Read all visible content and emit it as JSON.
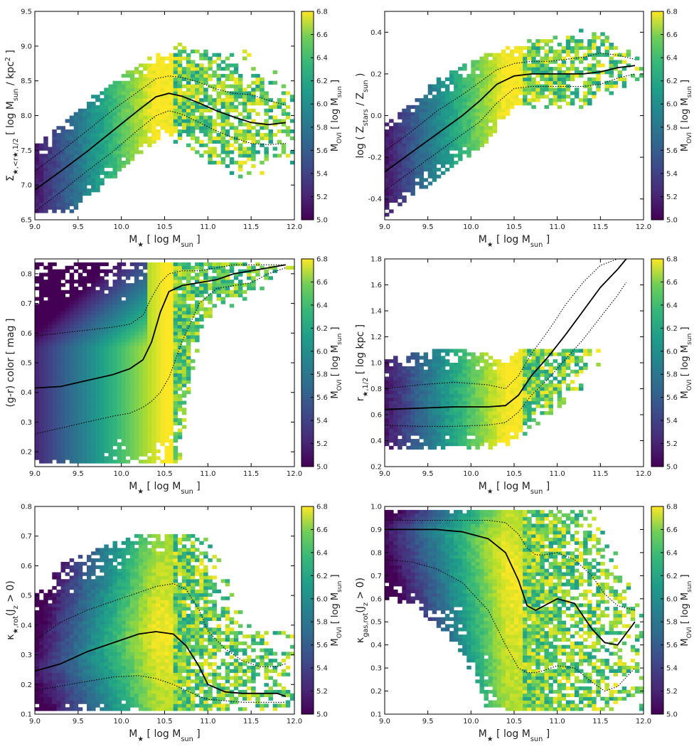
{
  "chart_data": [
    {
      "type": "heatmap",
      "xlabel": "M_★ [ log M_sun ]",
      "ylabel": "Σ_★,<r★,1/2 [ log M_sun / kpc² ]",
      "xlim": [
        9.0,
        12.0
      ],
      "ylim": [
        6.5,
        9.5
      ],
      "xticks": [
        "9.0",
        "9.5",
        "10.0",
        "10.5",
        "11.0",
        "11.5",
        "12.0"
      ],
      "yticks": [
        "6.5",
        "7.0",
        "7.5",
        "8.0",
        "8.5",
        "9.0",
        "9.5"
      ],
      "colorbar": {
        "label": "M_OVI [ log M_sun ]",
        "range": [
          5.0,
          6.8
        ],
        "ticks": [
          "5.0",
          "5.2",
          "5.4",
          "5.6",
          "5.8",
          "6.0",
          "6.2",
          "6.4",
          "6.6",
          "6.8"
        ]
      },
      "median": {
        "x": [
          9.0,
          9.3,
          9.6,
          9.9,
          10.2,
          10.4,
          10.55,
          10.7,
          10.9,
          11.1,
          11.3,
          11.5,
          11.7,
          11.9
        ],
        "y": [
          6.93,
          7.2,
          7.48,
          7.78,
          8.08,
          8.27,
          8.32,
          8.28,
          8.18,
          8.07,
          7.98,
          7.9,
          7.87,
          7.9
        ]
      },
      "upper": {
        "x": [
          9.0,
          9.3,
          9.6,
          9.9,
          10.2,
          10.4,
          10.55,
          10.7,
          10.9,
          11.1,
          11.3,
          11.5,
          11.7,
          11.9
        ],
        "y": [
          7.2,
          7.48,
          7.78,
          8.08,
          8.35,
          8.53,
          8.57,
          8.55,
          8.48,
          8.38,
          8.32,
          8.3,
          8.22,
          8.15
        ]
      },
      "lower": {
        "x": [
          9.0,
          9.3,
          9.6,
          9.9,
          10.2,
          10.4,
          10.55,
          10.7,
          10.9,
          11.1,
          11.3,
          11.5,
          11.7,
          11.9
        ],
        "y": [
          6.62,
          6.9,
          7.2,
          7.48,
          7.8,
          8.0,
          8.07,
          8.02,
          7.9,
          7.78,
          7.68,
          7.6,
          7.58,
          7.6
        ]
      },
      "band_width": 0.75,
      "fill_top": 9.45,
      "fill_bottom": 6.6
    },
    {
      "type": "heatmap",
      "xlabel": "M_★ [ log M_sun ]",
      "ylabel": "log ( Z_stars / Z_sun )",
      "xlim": [
        9.0,
        12.0
      ],
      "ylim": [
        -0.5,
        0.5
      ],
      "xticks": [
        "9.0",
        "9.5",
        "10.0",
        "10.5",
        "11.0",
        "11.5",
        "12.0"
      ],
      "yticks": [
        "-0.4",
        "-0.2",
        "0.0",
        "0.2",
        "0.4"
      ],
      "yticks_values": [
        -0.4,
        -0.2,
        0.0,
        0.2,
        0.4
      ],
      "colorbar": {
        "label": "M_OVI [ log M_sun ]",
        "range": [
          5.0,
          6.8
        ],
        "ticks": [
          "5.0",
          "5.2",
          "5.4",
          "5.6",
          "5.8",
          "6.0",
          "6.2",
          "6.4",
          "6.6",
          "6.8"
        ]
      },
      "median": {
        "x": [
          9.0,
          9.3,
          9.6,
          9.9,
          10.1,
          10.3,
          10.5,
          10.7,
          10.9,
          11.1,
          11.3,
          11.5,
          11.7,
          11.9
        ],
        "y": [
          -0.27,
          -0.18,
          -0.09,
          0.0,
          0.07,
          0.15,
          0.19,
          0.2,
          0.2,
          0.2,
          0.2,
          0.21,
          0.23,
          0.24
        ]
      },
      "upper": {
        "x": [
          9.0,
          9.3,
          9.6,
          9.9,
          10.1,
          10.3,
          10.5,
          10.7,
          10.9,
          11.1,
          11.3,
          11.5,
          11.7,
          11.9
        ],
        "y": [
          -0.17,
          -0.08,
          0.02,
          0.1,
          0.16,
          0.22,
          0.25,
          0.26,
          0.26,
          0.27,
          0.28,
          0.3,
          0.29,
          0.27
        ]
      },
      "lower": {
        "x": [
          9.0,
          9.3,
          9.6,
          9.9,
          10.1,
          10.3,
          10.5,
          10.7,
          10.9,
          11.1,
          11.3,
          11.5,
          11.7,
          11.9
        ],
        "y": [
          -0.36,
          -0.27,
          -0.18,
          -0.09,
          -0.03,
          0.06,
          0.13,
          0.14,
          0.14,
          0.14,
          0.14,
          0.15,
          0.18,
          0.2
        ]
      },
      "band_width": 0.27,
      "fill_top": 0.44,
      "fill_bottom": -0.48
    },
    {
      "type": "heatmap",
      "xlabel": "M_★ [ log M_sun ]",
      "ylabel": "(g-r) color [ mag ]",
      "xlim": [
        9.0,
        12.0
      ],
      "ylim": [
        0.15,
        0.85
      ],
      "xticks": [
        "9.0",
        "9.5",
        "10.0",
        "10.5",
        "11.0",
        "11.5",
        "12.0"
      ],
      "yticks": [
        "0.2",
        "0.3",
        "0.4",
        "0.5",
        "0.6",
        "0.7",
        "0.8"
      ],
      "yticks_values": [
        0.2,
        0.3,
        0.4,
        0.5,
        0.6,
        0.7,
        0.8
      ],
      "colorbar": {
        "label": "M_OVI [ log M_sun ]",
        "range": [
          5.0,
          6.8
        ],
        "ticks": [
          "5.0",
          "5.2",
          "5.4",
          "5.6",
          "5.8",
          "6.0",
          "6.2",
          "6.4",
          "6.6",
          "6.8"
        ]
      },
      "median": {
        "x": [
          9.0,
          9.3,
          9.6,
          9.9,
          10.1,
          10.25,
          10.35,
          10.45,
          10.55,
          10.7,
          10.9,
          11.1,
          11.3,
          11.5,
          11.7,
          11.9
        ],
        "y": [
          0.415,
          0.42,
          0.44,
          0.46,
          0.48,
          0.51,
          0.57,
          0.67,
          0.74,
          0.76,
          0.77,
          0.78,
          0.8,
          0.81,
          0.82,
          0.83
        ]
      },
      "upper": {
        "x": [
          9.0,
          9.3,
          9.6,
          9.9,
          10.1,
          10.25,
          10.35,
          10.45,
          10.55,
          10.7,
          10.9,
          11.1,
          11.3,
          11.5,
          11.7,
          11.9
        ],
        "y": [
          0.59,
          0.6,
          0.61,
          0.62,
          0.63,
          0.66,
          0.72,
          0.77,
          0.8,
          0.81,
          0.81,
          0.82,
          0.83,
          0.83,
          0.83,
          0.83
        ]
      },
      "lower": {
        "x": [
          9.0,
          9.3,
          9.6,
          9.9,
          10.1,
          10.25,
          10.35,
          10.45,
          10.55,
          10.7,
          10.9,
          11.1,
          11.3,
          11.5,
          11.7,
          11.9
        ],
        "y": [
          0.26,
          0.28,
          0.3,
          0.32,
          0.33,
          0.35,
          0.37,
          0.4,
          0.45,
          0.57,
          0.7,
          0.75,
          0.76,
          0.77,
          0.8,
          0.82
        ]
      },
      "band_width": 0.25,
      "fill_top": 0.84,
      "fill_bottom": 0.16
    },
    {
      "type": "heatmap",
      "xlabel": "M_★ [ log M_sun ]",
      "ylabel": "r_★,1/2 [ log kpc ]",
      "xlim": [
        9.0,
        12.0
      ],
      "ylim": [
        0.2,
        1.8
      ],
      "xticks": [
        "9.0",
        "9.5",
        "10.0",
        "10.5",
        "11.0",
        "11.5",
        "12.0"
      ],
      "yticks": [
        "0.2",
        "0.4",
        "0.6",
        "0.8",
        "1.0",
        "1.2",
        "1.4",
        "1.6",
        "1.8"
      ],
      "yticks_values": [
        0.2,
        0.4,
        0.6,
        0.8,
        1.0,
        1.2,
        1.4,
        1.6,
        1.8
      ],
      "colorbar": {
        "label": "M_OVI [ log M_sun ]",
        "range": [
          5.0,
          6.8
        ],
        "ticks": [
          "5.0",
          "5.2",
          "5.4",
          "5.6",
          "5.8",
          "6.0",
          "6.2",
          "6.4",
          "6.6",
          "6.8"
        ]
      },
      "median": {
        "x": [
          9.0,
          9.4,
          9.8,
          10.2,
          10.4,
          10.55,
          10.7,
          10.9,
          11.1,
          11.3,
          11.5,
          11.7,
          11.8
        ],
        "y": [
          0.64,
          0.65,
          0.66,
          0.66,
          0.67,
          0.75,
          0.9,
          1.05,
          1.22,
          1.4,
          1.58,
          1.72,
          1.8
        ]
      },
      "upper": {
        "x": [
          9.0,
          9.4,
          9.8,
          10.2,
          10.4,
          10.55,
          10.7,
          10.9,
          11.1,
          11.3,
          11.5,
          11.7,
          11.8
        ],
        "y": [
          0.8,
          0.83,
          0.85,
          0.83,
          0.8,
          0.9,
          1.07,
          1.25,
          1.45,
          1.62,
          1.75,
          1.8,
          1.8
        ]
      },
      "lower": {
        "x": [
          9.0,
          9.4,
          9.8,
          10.2,
          10.4,
          10.55,
          10.7,
          10.9,
          11.1,
          11.3,
          11.5,
          11.7,
          11.8
        ],
        "y": [
          0.52,
          0.51,
          0.51,
          0.52,
          0.54,
          0.62,
          0.75,
          0.88,
          1.03,
          1.18,
          1.35,
          1.52,
          1.62
        ]
      },
      "band_width": 0.42,
      "fill_top": 1.1,
      "fill_bottom": 0.33
    },
    {
      "type": "heatmap",
      "xlabel": "M_★ [ log M_sun ]",
      "ylabel": "κ_★,rot(J_z > 0)",
      "xlim": [
        9.0,
        12.0
      ],
      "ylim": [
        0.1,
        0.8
      ],
      "xticks": [
        "9.0",
        "9.5",
        "10.0",
        "10.5",
        "11.0",
        "11.5",
        "12.0"
      ],
      "yticks": [
        "0.1",
        "0.2",
        "0.3",
        "0.4",
        "0.5",
        "0.6",
        "0.7",
        "0.8"
      ],
      "yticks_values": [
        0.1,
        0.2,
        0.3,
        0.4,
        0.5,
        0.6,
        0.7,
        0.8
      ],
      "colorbar": {
        "label": "M_OVI [ log M_sun ]",
        "range": [
          5.0,
          6.8
        ],
        "ticks": [
          "5.0",
          "5.2",
          "5.4",
          "5.6",
          "5.8",
          "6.0",
          "6.2",
          "6.4",
          "6.6",
          "6.8"
        ]
      },
      "median": {
        "x": [
          9.0,
          9.3,
          9.6,
          9.9,
          10.2,
          10.4,
          10.6,
          10.75,
          10.9,
          11.0,
          11.2,
          11.4,
          11.6,
          11.8,
          11.9
        ],
        "y": [
          0.245,
          0.27,
          0.31,
          0.34,
          0.37,
          0.378,
          0.37,
          0.33,
          0.26,
          0.2,
          0.175,
          0.17,
          0.17,
          0.17,
          0.16
        ]
      },
      "upper": {
        "x": [
          9.0,
          9.3,
          9.6,
          9.9,
          10.2,
          10.4,
          10.6,
          10.75,
          10.9,
          11.0,
          11.2,
          11.4,
          11.6,
          11.8,
          11.9
        ],
        "y": [
          0.35,
          0.41,
          0.45,
          0.48,
          0.51,
          0.53,
          0.54,
          0.52,
          0.45,
          0.38,
          0.32,
          0.28,
          0.26,
          0.26,
          0.27
        ]
      },
      "lower": {
        "x": [
          9.0,
          9.3,
          9.6,
          9.9,
          10.2,
          10.4,
          10.6,
          10.75,
          10.9,
          11.0,
          11.2,
          11.4,
          11.6,
          11.8,
          11.9
        ],
        "y": [
          0.18,
          0.195,
          0.21,
          0.225,
          0.23,
          0.22,
          0.2,
          0.18,
          0.16,
          0.15,
          0.145,
          0.14,
          0.14,
          0.14,
          0.14
        ]
      },
      "band_width": 0.3,
      "fill_top": 0.71,
      "fill_bottom": 0.11
    },
    {
      "type": "heatmap",
      "xlabel": "M_★ [ log M_sun ]",
      "ylabel": "κ_gas,rot(J_z > 0)",
      "xlim": [
        9.0,
        12.0
      ],
      "ylim": [
        0.1,
        1.0
      ],
      "xticks": [
        "9.0",
        "9.5",
        "10.0",
        "10.5",
        "11.0",
        "11.5",
        "12.0"
      ],
      "yticks": [
        "0.1",
        "0.2",
        "0.3",
        "0.4",
        "0.5",
        "0.6",
        "0.7",
        "0.8",
        "0.9",
        "1.0"
      ],
      "yticks_values": [
        0.1,
        0.2,
        0.3,
        0.4,
        0.5,
        0.6,
        0.7,
        0.8,
        0.9,
        1.0
      ],
      "colorbar": {
        "label": "M_OVI [ log M_sun ]",
        "range": [
          5.0,
          6.8
        ],
        "ticks": [
          "5.0",
          "5.2",
          "5.4",
          "5.6",
          "5.8",
          "6.0",
          "6.2",
          "6.4",
          "6.6",
          "6.8"
        ]
      },
      "median": {
        "x": [
          9.0,
          9.3,
          9.6,
          9.9,
          10.2,
          10.4,
          10.55,
          10.65,
          10.75,
          10.85,
          11.0,
          11.2,
          11.4,
          11.55,
          11.7,
          11.9
        ],
        "y": [
          0.9,
          0.9,
          0.9,
          0.89,
          0.86,
          0.8,
          0.68,
          0.57,
          0.55,
          0.57,
          0.6,
          0.58,
          0.47,
          0.41,
          0.4,
          0.5
        ]
      },
      "upper": {
        "x": [
          9.0,
          9.3,
          9.6,
          9.9,
          10.2,
          10.4,
          10.55,
          10.65,
          10.75,
          10.85,
          11.0,
          11.2,
          11.4,
          11.55,
          11.7,
          11.9
        ],
        "y": [
          0.94,
          0.94,
          0.94,
          0.94,
          0.94,
          0.93,
          0.88,
          0.82,
          0.79,
          0.79,
          0.8,
          0.77,
          0.7,
          0.62,
          0.57,
          0.55
        ]
      },
      "lower": {
        "x": [
          9.0,
          9.3,
          9.6,
          9.9,
          10.2,
          10.4,
          10.55,
          10.65,
          10.75,
          10.85,
          11.0,
          11.2,
          11.4,
          11.55,
          11.7,
          11.9
        ],
        "y": [
          0.77,
          0.76,
          0.73,
          0.67,
          0.55,
          0.4,
          0.3,
          0.28,
          0.28,
          0.29,
          0.31,
          0.3,
          0.24,
          0.2,
          0.22,
          0.3
        ]
      },
      "band_width": 0.55,
      "fill_top": 0.99,
      "fill_bottom": 0.11
    }
  ]
}
